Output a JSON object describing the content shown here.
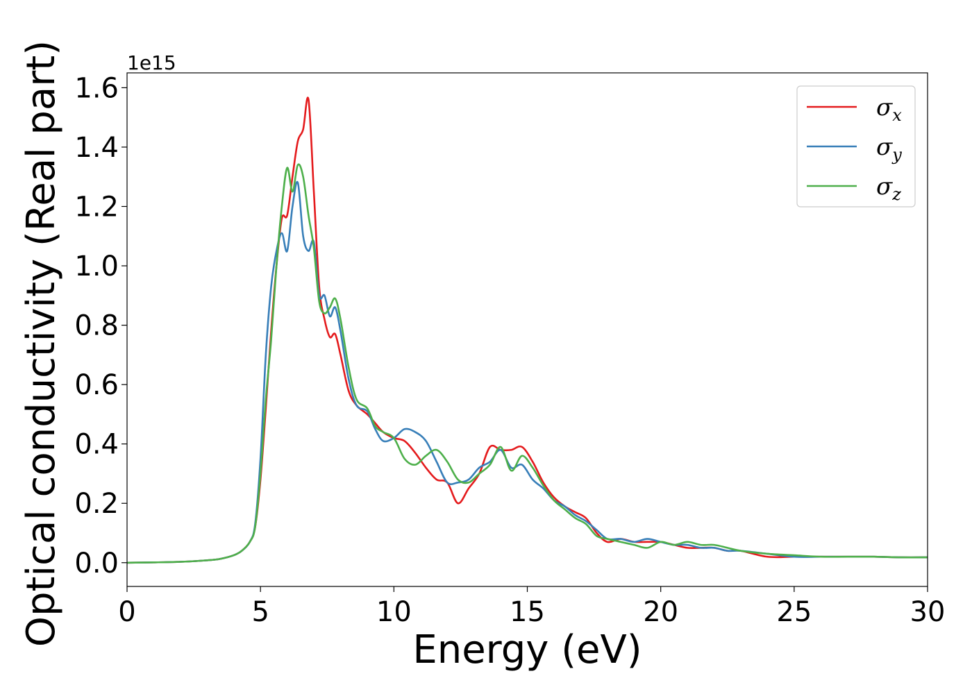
{
  "chart_data": {
    "type": "line",
    "xlabel": "Energy (eV)",
    "ylabel": "Optical conductivity (Real part)",
    "y_offset_label": "1e15",
    "xlim": [
      0,
      30
    ],
    "ylim": [
      -0.08,
      1.65
    ],
    "xticks": [
      0,
      5,
      10,
      15,
      20,
      25,
      30
    ],
    "xtick_labels": [
      "0",
      "5",
      "10",
      "15",
      "20",
      "25",
      "30"
    ],
    "yticks": [
      0.0,
      0.2,
      0.4,
      0.6,
      0.8,
      1.0,
      1.2,
      1.4,
      1.6
    ],
    "ytick_labels": [
      "0.0",
      "0.2",
      "0.4",
      "0.6",
      "0.8",
      "1.0",
      "1.2",
      "1.4",
      "1.6"
    ],
    "grid": false,
    "legend_position": "top-right",
    "series": [
      {
        "name": "σx",
        "symbol": "σ",
        "subscript": "x",
        "color": "#e41a1c",
        "x": [
          0,
          1,
          2,
          3,
          3.5,
          4,
          4.3,
          4.6,
          4.8,
          5.0,
          5.2,
          5.4,
          5.6,
          5.8,
          6.0,
          6.2,
          6.4,
          6.6,
          6.8,
          7.0,
          7.2,
          7.4,
          7.6,
          7.8,
          8.0,
          8.3,
          8.6,
          9.0,
          9.3,
          9.6,
          10.0,
          10.4,
          10.8,
          11.2,
          11.6,
          12.0,
          12.4,
          12.8,
          13.2,
          13.6,
          14.0,
          14.4,
          14.8,
          15.2,
          15.6,
          16.0,
          16.4,
          16.8,
          17.2,
          17.6,
          18.0,
          18.5,
          19.0,
          19.5,
          20.0,
          20.5,
          21.0,
          21.5,
          22.0,
          22.5,
          23.0,
          24.0,
          25.0,
          26.0,
          27.0,
          28.0,
          29.0,
          30.0
        ],
        "y": [
          0.0,
          0.001,
          0.003,
          0.008,
          0.013,
          0.025,
          0.04,
          0.07,
          0.12,
          0.28,
          0.52,
          0.78,
          1.0,
          1.16,
          1.17,
          1.3,
          1.42,
          1.46,
          1.56,
          1.25,
          0.93,
          0.82,
          0.76,
          0.77,
          0.7,
          0.58,
          0.53,
          0.5,
          0.47,
          0.44,
          0.42,
          0.41,
          0.37,
          0.32,
          0.28,
          0.27,
          0.2,
          0.25,
          0.3,
          0.39,
          0.38,
          0.38,
          0.39,
          0.34,
          0.27,
          0.22,
          0.19,
          0.17,
          0.15,
          0.1,
          0.07,
          0.08,
          0.07,
          0.07,
          0.07,
          0.06,
          0.05,
          0.05,
          0.05,
          0.04,
          0.04,
          0.02,
          0.02,
          0.02,
          0.02,
          0.02,
          0.018,
          0.018
        ]
      },
      {
        "name": "σy",
        "symbol": "σ",
        "subscript": "y",
        "color": "#377eb8",
        "x": [
          0,
          1,
          2,
          3,
          3.5,
          4,
          4.3,
          4.6,
          4.8,
          5.0,
          5.2,
          5.4,
          5.6,
          5.8,
          6.0,
          6.2,
          6.4,
          6.6,
          6.8,
          7.0,
          7.2,
          7.4,
          7.6,
          7.8,
          8.0,
          8.3,
          8.6,
          9.0,
          9.3,
          9.6,
          10.0,
          10.4,
          10.8,
          11.2,
          11.6,
          12.0,
          12.4,
          12.8,
          13.2,
          13.6,
          14.0,
          14.4,
          14.8,
          15.2,
          15.6,
          16.0,
          16.4,
          16.8,
          17.2,
          17.6,
          18.0,
          18.5,
          19.0,
          19.5,
          20.0,
          20.5,
          21.0,
          21.5,
          22.0,
          22.5,
          23.0,
          24.0,
          25.0,
          26.0,
          27.0,
          28.0,
          29.0,
          30.0
        ],
        "y": [
          0.0,
          0.001,
          0.003,
          0.008,
          0.013,
          0.025,
          0.04,
          0.07,
          0.13,
          0.35,
          0.7,
          0.93,
          1.05,
          1.11,
          1.05,
          1.2,
          1.28,
          1.1,
          1.05,
          1.08,
          0.9,
          0.9,
          0.83,
          0.86,
          0.78,
          0.62,
          0.53,
          0.51,
          0.45,
          0.41,
          0.42,
          0.45,
          0.44,
          0.41,
          0.34,
          0.27,
          0.27,
          0.28,
          0.32,
          0.34,
          0.38,
          0.32,
          0.33,
          0.28,
          0.25,
          0.21,
          0.19,
          0.16,
          0.14,
          0.11,
          0.08,
          0.08,
          0.07,
          0.08,
          0.07,
          0.06,
          0.06,
          0.05,
          0.05,
          0.04,
          0.04,
          0.03,
          0.02,
          0.02,
          0.02,
          0.02,
          0.018,
          0.018
        ]
      },
      {
        "name": "σz",
        "symbol": "σ",
        "subscript": "z",
        "color": "#4daf4a",
        "x": [
          0,
          1,
          2,
          3,
          3.5,
          4,
          4.3,
          4.6,
          4.8,
          5.0,
          5.2,
          5.4,
          5.6,
          5.8,
          6.0,
          6.2,
          6.4,
          6.6,
          6.8,
          7.0,
          7.2,
          7.4,
          7.6,
          7.8,
          8.0,
          8.3,
          8.6,
          9.0,
          9.3,
          9.6,
          10.0,
          10.4,
          10.8,
          11.2,
          11.6,
          12.0,
          12.4,
          12.8,
          13.2,
          13.6,
          14.0,
          14.4,
          14.8,
          15.2,
          15.6,
          16.0,
          16.4,
          16.8,
          17.2,
          17.6,
          18.0,
          18.5,
          19.0,
          19.5,
          20.0,
          20.5,
          21.0,
          21.5,
          22.0,
          22.5,
          23.0,
          24.0,
          25.0,
          26.0,
          27.0,
          28.0,
          29.0,
          30.0
        ],
        "y": [
          0.0,
          0.001,
          0.003,
          0.008,
          0.013,
          0.025,
          0.04,
          0.07,
          0.12,
          0.3,
          0.55,
          0.75,
          1.0,
          1.2,
          1.33,
          1.25,
          1.34,
          1.3,
          1.17,
          1.06,
          0.88,
          0.84,
          0.86,
          0.89,
          0.82,
          0.66,
          0.55,
          0.52,
          0.46,
          0.44,
          0.42,
          0.35,
          0.33,
          0.36,
          0.38,
          0.34,
          0.28,
          0.27,
          0.3,
          0.33,
          0.39,
          0.31,
          0.36,
          0.32,
          0.26,
          0.21,
          0.18,
          0.15,
          0.13,
          0.09,
          0.08,
          0.07,
          0.06,
          0.05,
          0.07,
          0.06,
          0.07,
          0.06,
          0.06,
          0.05,
          0.04,
          0.03,
          0.025,
          0.02,
          0.02,
          0.02,
          0.018,
          0.018
        ]
      }
    ]
  }
}
